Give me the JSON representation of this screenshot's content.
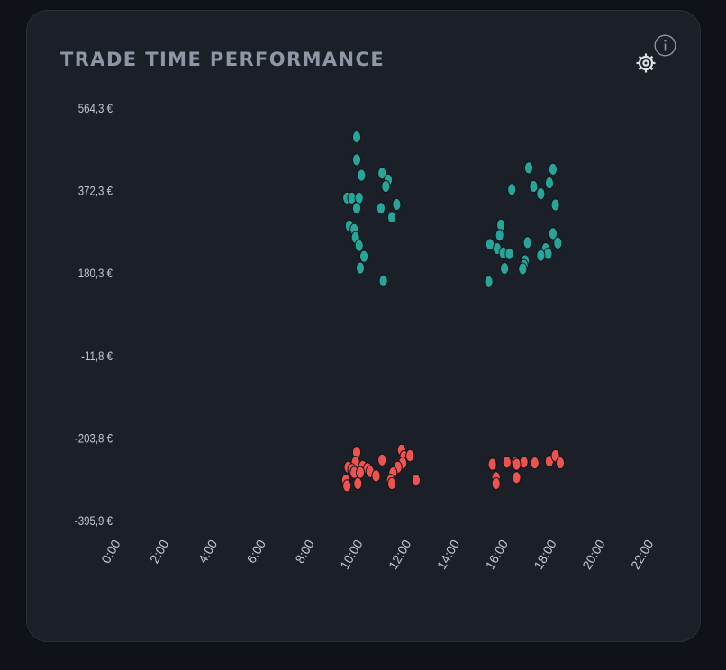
{
  "card": {
    "title": "TRADE TIME PERFORMANCE"
  },
  "icons": {
    "settings": "gear-icon",
    "info": "info-icon"
  },
  "colors": {
    "background": "#0f1319",
    "card": "#1b1f27",
    "title": "#8e97a6",
    "axis_text": "#c4c9d1",
    "profit": "#26a69a",
    "loss": "#ef5350",
    "grid": "#2c313a"
  },
  "chart_data": {
    "type": "scatter",
    "title": "TRADE TIME PERFORMANCE",
    "xlabel": "",
    "ylabel": "",
    "x_unit": "hour of day",
    "xlim": [
      0,
      22.4
    ],
    "ylim": [
      -395.9,
      564.3
    ],
    "x_tick_values": [
      0,
      2,
      4,
      6,
      8,
      10,
      12,
      14,
      16,
      18,
      20,
      22
    ],
    "x_tick_labels": [
      "0:00",
      "2:00",
      "4:00",
      "6:00",
      "8:00",
      "10:00",
      "12:00",
      "14:00",
      "16:00",
      "18:00",
      "20:00",
      "22:00"
    ],
    "y_tick_values": [
      564.3,
      372.3,
      180.3,
      -11.8,
      -203.8,
      -395.9
    ],
    "y_tick_labels": [
      "564,3 €",
      "372,3 €",
      "180,3 €",
      "-11,8 €",
      "-203,8 €",
      "-395,9 €"
    ],
    "grid": false,
    "legend": "none",
    "series": [
      {
        "color": "#26a69a",
        "points": [
          [
            10.0,
            497
          ],
          [
            10.0,
            444
          ],
          [
            10.2,
            408
          ],
          [
            11.05,
            413
          ],
          [
            11.3,
            397
          ],
          [
            11.2,
            382
          ],
          [
            11.45,
            310
          ],
          [
            9.6,
            355
          ],
          [
            9.8,
            355
          ],
          [
            10.1,
            355
          ],
          [
            10.0,
            331
          ],
          [
            11.0,
            331
          ],
          [
            11.65,
            340
          ],
          [
            9.7,
            290
          ],
          [
            9.9,
            282
          ],
          [
            9.95,
            263
          ],
          [
            10.1,
            244
          ],
          [
            10.3,
            219
          ],
          [
            10.15,
            192
          ],
          [
            11.1,
            162
          ],
          [
            16.4,
            375
          ],
          [
            17.1,
            425
          ],
          [
            17.3,
            382
          ],
          [
            17.6,
            365
          ],
          [
            18.1,
            422
          ],
          [
            17.95,
            390
          ],
          [
            18.2,
            339
          ],
          [
            15.95,
            292
          ],
          [
            15.9,
            268
          ],
          [
            15.5,
            247
          ],
          [
            15.8,
            237
          ],
          [
            16.05,
            227
          ],
          [
            16.3,
            225
          ],
          [
            17.05,
            251
          ],
          [
            18.1,
            272
          ],
          [
            18.3,
            250
          ],
          [
            17.8,
            237
          ],
          [
            17.9,
            225
          ],
          [
            17.6,
            221
          ],
          [
            16.95,
            209
          ],
          [
            16.9,
            198
          ],
          [
            16.85,
            190
          ],
          [
            16.1,
            191
          ],
          [
            15.45,
            160
          ]
        ]
      },
      {
        "color": "#ef5350",
        "points": [
          [
            10.0,
            -237
          ],
          [
            11.85,
            -232
          ],
          [
            11.95,
            -247
          ],
          [
            12.2,
            -245
          ],
          [
            11.05,
            -255
          ],
          [
            11.9,
            -262
          ],
          [
            9.95,
            -260
          ],
          [
            15.6,
            -265
          ],
          [
            16.2,
            -260
          ],
          [
            16.55,
            -262
          ],
          [
            16.9,
            -260
          ],
          [
            16.6,
            -265
          ],
          [
            17.35,
            -262
          ],
          [
            17.95,
            -258
          ],
          [
            18.2,
            -245
          ],
          [
            18.4,
            -262
          ],
          [
            9.65,
            -272
          ],
          [
            9.8,
            -277
          ],
          [
            10.25,
            -270
          ],
          [
            10.45,
            -275
          ],
          [
            9.9,
            -284
          ],
          [
            10.15,
            -284
          ],
          [
            10.55,
            -282
          ],
          [
            11.7,
            -272
          ],
          [
            10.8,
            -292
          ],
          [
            11.5,
            -285
          ],
          [
            9.55,
            -302
          ],
          [
            11.4,
            -302
          ],
          [
            11.45,
            -310
          ],
          [
            12.45,
            -302
          ],
          [
            15.75,
            -296
          ],
          [
            16.6,
            -296
          ],
          [
            10.05,
            -310
          ],
          [
            9.6,
            -315
          ],
          [
            15.75,
            -310
          ]
        ]
      }
    ]
  }
}
